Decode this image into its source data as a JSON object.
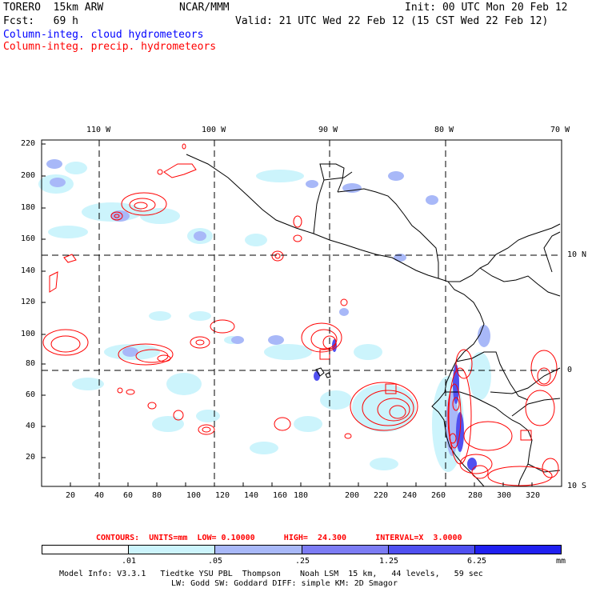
{
  "header": {
    "model": "TORERO  15km ARW",
    "center": "NCAR/MMM",
    "init": "Init: 00 UTC Mon 20 Feb 12",
    "fcst": "Fcst:   69 h",
    "valid": "Valid: 21 UTC Wed 22 Feb 12 (15 CST Wed 22 Feb 12)",
    "field1": "Column-integ. cloud hydrometeors",
    "field2": "Column-integ. precip. hydrometeors"
  },
  "axes": {
    "top_lon_labels": [
      "110 W",
      "100 W",
      "90 W",
      "80 W",
      "70 W"
    ],
    "right_lat_labels": [
      "10 N",
      "0",
      "10 S"
    ],
    "left_ticks": [
      "220",
      "200",
      "180",
      "160",
      "140",
      "120",
      "100",
      "80",
      "60",
      "40",
      "20"
    ],
    "bottom_ticks": [
      "20",
      "40",
      "60",
      "80",
      "100",
      "120",
      "140",
      "160",
      "180",
      "200",
      "220",
      "240",
      "260",
      "280",
      "300",
      "320"
    ]
  },
  "contours_info": {
    "label": "CONTOURS:  UNITS=mm  LOW= 0.10000      HIGH=  24.300      INTERVAL=X  3.0000"
  },
  "colorbar": {
    "labels": [
      ".01",
      ".05",
      ".25",
      "1.25",
      "6.25"
    ],
    "unit": "mm",
    "colors": [
      "#ffffff",
      "#ccf4fc",
      "#a8b8f8",
      "#7c7cf4",
      "#5050f0",
      "#2020f0"
    ]
  },
  "footer": {
    "line1": "Model Info: V3.3.1   Tiedtke YSU PBL  Thompson    Noah LSM  15 km,   44 levels,   59 sec",
    "line2": "LW: Godd SW: Goddard DIFF: simple KM: 2D Smagor"
  }
}
